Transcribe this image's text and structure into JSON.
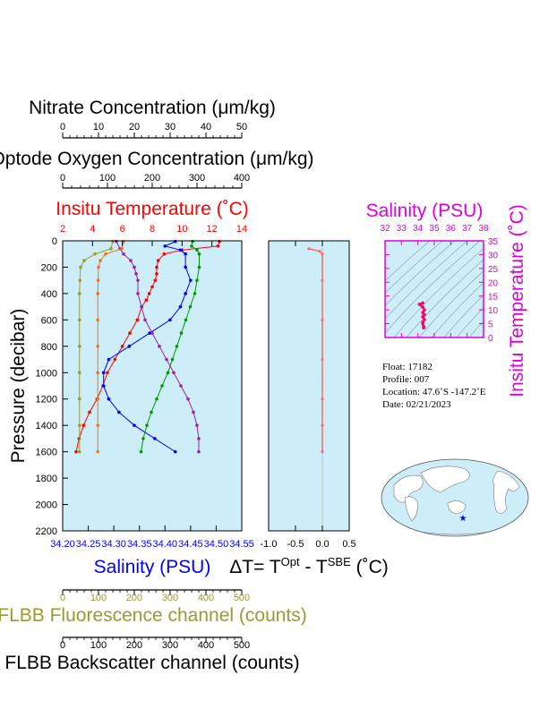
{
  "axes": {
    "nitrate": {
      "label": "Nitrate Concentration (μm/kg)",
      "ticks": [
        "0",
        "10",
        "20",
        "30",
        "40",
        "50"
      ],
      "range": [
        0,
        50
      ]
    },
    "oxygen": {
      "label": "Optode Oxygen Concentration (μm/kg)",
      "ticks": [
        "0",
        "100",
        "200",
        "300",
        "400"
      ],
      "range": [
        0,
        400
      ]
    },
    "temperature": {
      "label": "Insitu Temperature (˚C)",
      "ticks": [
        "2",
        "4",
        "6",
        "8",
        "10",
        "12",
        "14"
      ],
      "range": [
        2,
        14
      ],
      "color": "#ff0000"
    },
    "pressure": {
      "label": "Pressure (decibar)",
      "ticks": [
        "0",
        "200",
        "400",
        "600",
        "800",
        "1000",
        "1200",
        "1400",
        "1600",
        "1800",
        "2000",
        "2200"
      ],
      "range": [
        0,
        2200
      ]
    },
    "salinity": {
      "label": "Salinity (PSU)",
      "ticks": [
        "34.20",
        "34.25",
        "34.30",
        "34.35",
        "34.40",
        "34.45",
        "34.50",
        "34.55"
      ],
      "range": [
        34.2,
        34.55
      ],
      "color": "#0000ff"
    },
    "fluorescence": {
      "label": "FLBB Fluorescence channel (counts)",
      "ticks": [
        "0",
        "100",
        "200",
        "300",
        "400",
        "500"
      ],
      "range": [
        0,
        500
      ],
      "color": "#9a9a32"
    },
    "backscatter": {
      "label": "FLBB Backscatter channel (counts)",
      "ticks": [
        "0",
        "100",
        "200",
        "300",
        "400",
        "500"
      ],
      "range": [
        0,
        500
      ]
    },
    "delta_t": {
      "label_main": "ΔT= T",
      "sup1": "Opt",
      "mid": " - T",
      "sup2": "SBE",
      "unit": " (˚C)",
      "ticks": [
        "-1.0",
        "-0.5",
        "0.0",
        "0.5"
      ],
      "range": [
        -1.0,
        0.5
      ]
    },
    "ts_salinity": {
      "label": "Salinity (PSU)",
      "ticks": [
        "32",
        "33",
        "34",
        "35",
        "36",
        "37",
        "38"
      ],
      "range": [
        32,
        38
      ],
      "color": "#dd00dd"
    },
    "ts_temperature": {
      "label": "Insitu Temperature (˚C)",
      "ticks": [
        "0",
        "5",
        "10",
        "15",
        "20",
        "25",
        "30",
        "35"
      ],
      "range": [
        0,
        35
      ],
      "color": "#dd00dd"
    }
  },
  "info": {
    "float": "Float:  17182",
    "profile": "Profile:  007",
    "location": "Location:  47.6˚S  -147.2˚E",
    "date": "Date:  02/21/2023"
  },
  "colors": {
    "panel_bg": "#cdeef8",
    "temperature": "#ff0000",
    "salinity": "#0000ff",
    "oxygen": "#009900",
    "nitrate": "#a0209f",
    "fluorescence": "#9a9a32",
    "backscatter": "#e87722",
    "delta_t": "#f07070",
    "ts": "#ff0066"
  },
  "chart_data": {
    "type": "line",
    "y_axis": "Pressure (decibar)",
    "ylim": [
      2200,
      0
    ],
    "series": [
      {
        "name": "Insitu Temperature (˚C)",
        "axis": "temperature",
        "points": [
          [
            12.5,
            5
          ],
          [
            12.4,
            40
          ],
          [
            10,
            70
          ],
          [
            8.8,
            100
          ],
          [
            8.4,
            150
          ],
          [
            8.3,
            200
          ],
          [
            8.3,
            250
          ],
          [
            8.2,
            300
          ],
          [
            8.0,
            350
          ],
          [
            7.8,
            400
          ],
          [
            7.6,
            450
          ],
          [
            7.3,
            500
          ],
          [
            7.0,
            600
          ],
          [
            6.5,
            700
          ],
          [
            6.0,
            800
          ],
          [
            5.5,
            900
          ],
          [
            5.0,
            1000
          ],
          [
            4.7,
            1100
          ],
          [
            4.3,
            1200
          ],
          [
            3.8,
            1300
          ],
          [
            3.4,
            1400
          ],
          [
            3.1,
            1500
          ],
          [
            2.9,
            1600
          ]
        ]
      },
      {
        "name": "Salinity (PSU)",
        "axis": "salinity",
        "points": [
          [
            34.42,
            5
          ],
          [
            34.4,
            40
          ],
          [
            34.43,
            70
          ],
          [
            34.44,
            100
          ],
          [
            34.44,
            200
          ],
          [
            34.45,
            300
          ],
          [
            34.44,
            400
          ],
          [
            34.43,
            500
          ],
          [
            34.41,
            600
          ],
          [
            34.37,
            700
          ],
          [
            34.33,
            800
          ],
          [
            34.29,
            900
          ],
          [
            34.28,
            1000
          ],
          [
            34.28,
            1100
          ],
          [
            34.29,
            1200
          ],
          [
            34.31,
            1300
          ],
          [
            34.34,
            1400
          ],
          [
            34.38,
            1500
          ],
          [
            34.42,
            1600
          ]
        ]
      },
      {
        "name": "Optode Oxygen Concentration (μm/kg)",
        "axis": "oxygen",
        "points": [
          [
            290,
            5
          ],
          [
            288,
            40
          ],
          [
            300,
            70
          ],
          [
            305,
            100
          ],
          [
            305,
            200
          ],
          [
            300,
            300
          ],
          [
            295,
            400
          ],
          [
            285,
            500
          ],
          [
            275,
            600
          ],
          [
            265,
            700
          ],
          [
            255,
            800
          ],
          [
            245,
            900
          ],
          [
            235,
            1000
          ],
          [
            222,
            1100
          ],
          [
            210,
            1200
          ],
          [
            198,
            1300
          ],
          [
            188,
            1400
          ],
          [
            180,
            1500
          ],
          [
            175,
            1600
          ]
        ]
      },
      {
        "name": "Nitrate Concentration (μm/kg)",
        "axis": "nitrate",
        "points": [
          [
            15,
            5
          ],
          [
            16,
            60
          ],
          [
            17,
            100
          ],
          [
            19,
            150
          ],
          [
            20,
            200
          ],
          [
            20.5,
            250
          ],
          [
            21,
            300
          ],
          [
            21,
            400
          ],
          [
            22,
            500
          ],
          [
            23,
            600
          ],
          [
            25,
            700
          ],
          [
            27,
            800
          ],
          [
            29,
            900
          ],
          [
            31,
            1000
          ],
          [
            33,
            1100
          ],
          [
            35,
            1200
          ],
          [
            36.5,
            1300
          ],
          [
            37.5,
            1400
          ],
          [
            38,
            1500
          ],
          [
            38,
            1600
          ]
        ]
      },
      {
        "name": "FLBB Fluorescence channel (counts)",
        "axis": "fluorescence",
        "points": [
          [
            140,
            5
          ],
          [
            135,
            60
          ],
          [
            90,
            100
          ],
          [
            60,
            150
          ],
          [
            50,
            200
          ],
          [
            48,
            300
          ],
          [
            47,
            400
          ],
          [
            47,
            600
          ],
          [
            47,
            800
          ],
          [
            47,
            1000
          ],
          [
            47,
            1200
          ],
          [
            47,
            1400
          ],
          [
            47,
            1600
          ]
        ]
      },
      {
        "name": "FLBB Backscatter channel (counts)",
        "axis": "backscatter",
        "points": [
          [
            170,
            5
          ],
          [
            165,
            60
          ],
          [
            120,
            100
          ],
          [
            105,
            150
          ],
          [
            100,
            200
          ],
          [
            99,
            300
          ],
          [
            98,
            400
          ],
          [
            98,
            600
          ],
          [
            98,
            800
          ],
          [
            98,
            1000
          ],
          [
            98,
            1200
          ],
          [
            98,
            1400
          ],
          [
            98,
            1600
          ]
        ]
      },
      {
        "name": "ΔT= T Opt - T SBE (˚C)",
        "axis": "delta_t",
        "points": [
          [
            -0.25,
            60
          ],
          [
            -0.05,
            80
          ],
          [
            0.0,
            100
          ],
          [
            0.0,
            300
          ],
          [
            0.0,
            600
          ],
          [
            0.0,
            900
          ],
          [
            0.0,
            1200
          ],
          [
            0.0,
            1400
          ],
          [
            0.0,
            1600
          ]
        ]
      },
      {
        "name": "T-S",
        "axis": "ts",
        "points": [
          [
            34.3,
            12.5
          ],
          [
            34.1,
            12.0
          ],
          [
            34.3,
            11.0
          ],
          [
            34.4,
            10.0
          ],
          [
            34.3,
            9.0
          ],
          [
            34.4,
            8.3
          ],
          [
            34.3,
            7.5
          ],
          [
            34.4,
            6.5
          ],
          [
            34.3,
            5.5
          ],
          [
            34.3,
            5.0
          ],
          [
            34.35,
            4.0
          ],
          [
            34.35,
            3.5
          ]
        ]
      }
    ]
  }
}
